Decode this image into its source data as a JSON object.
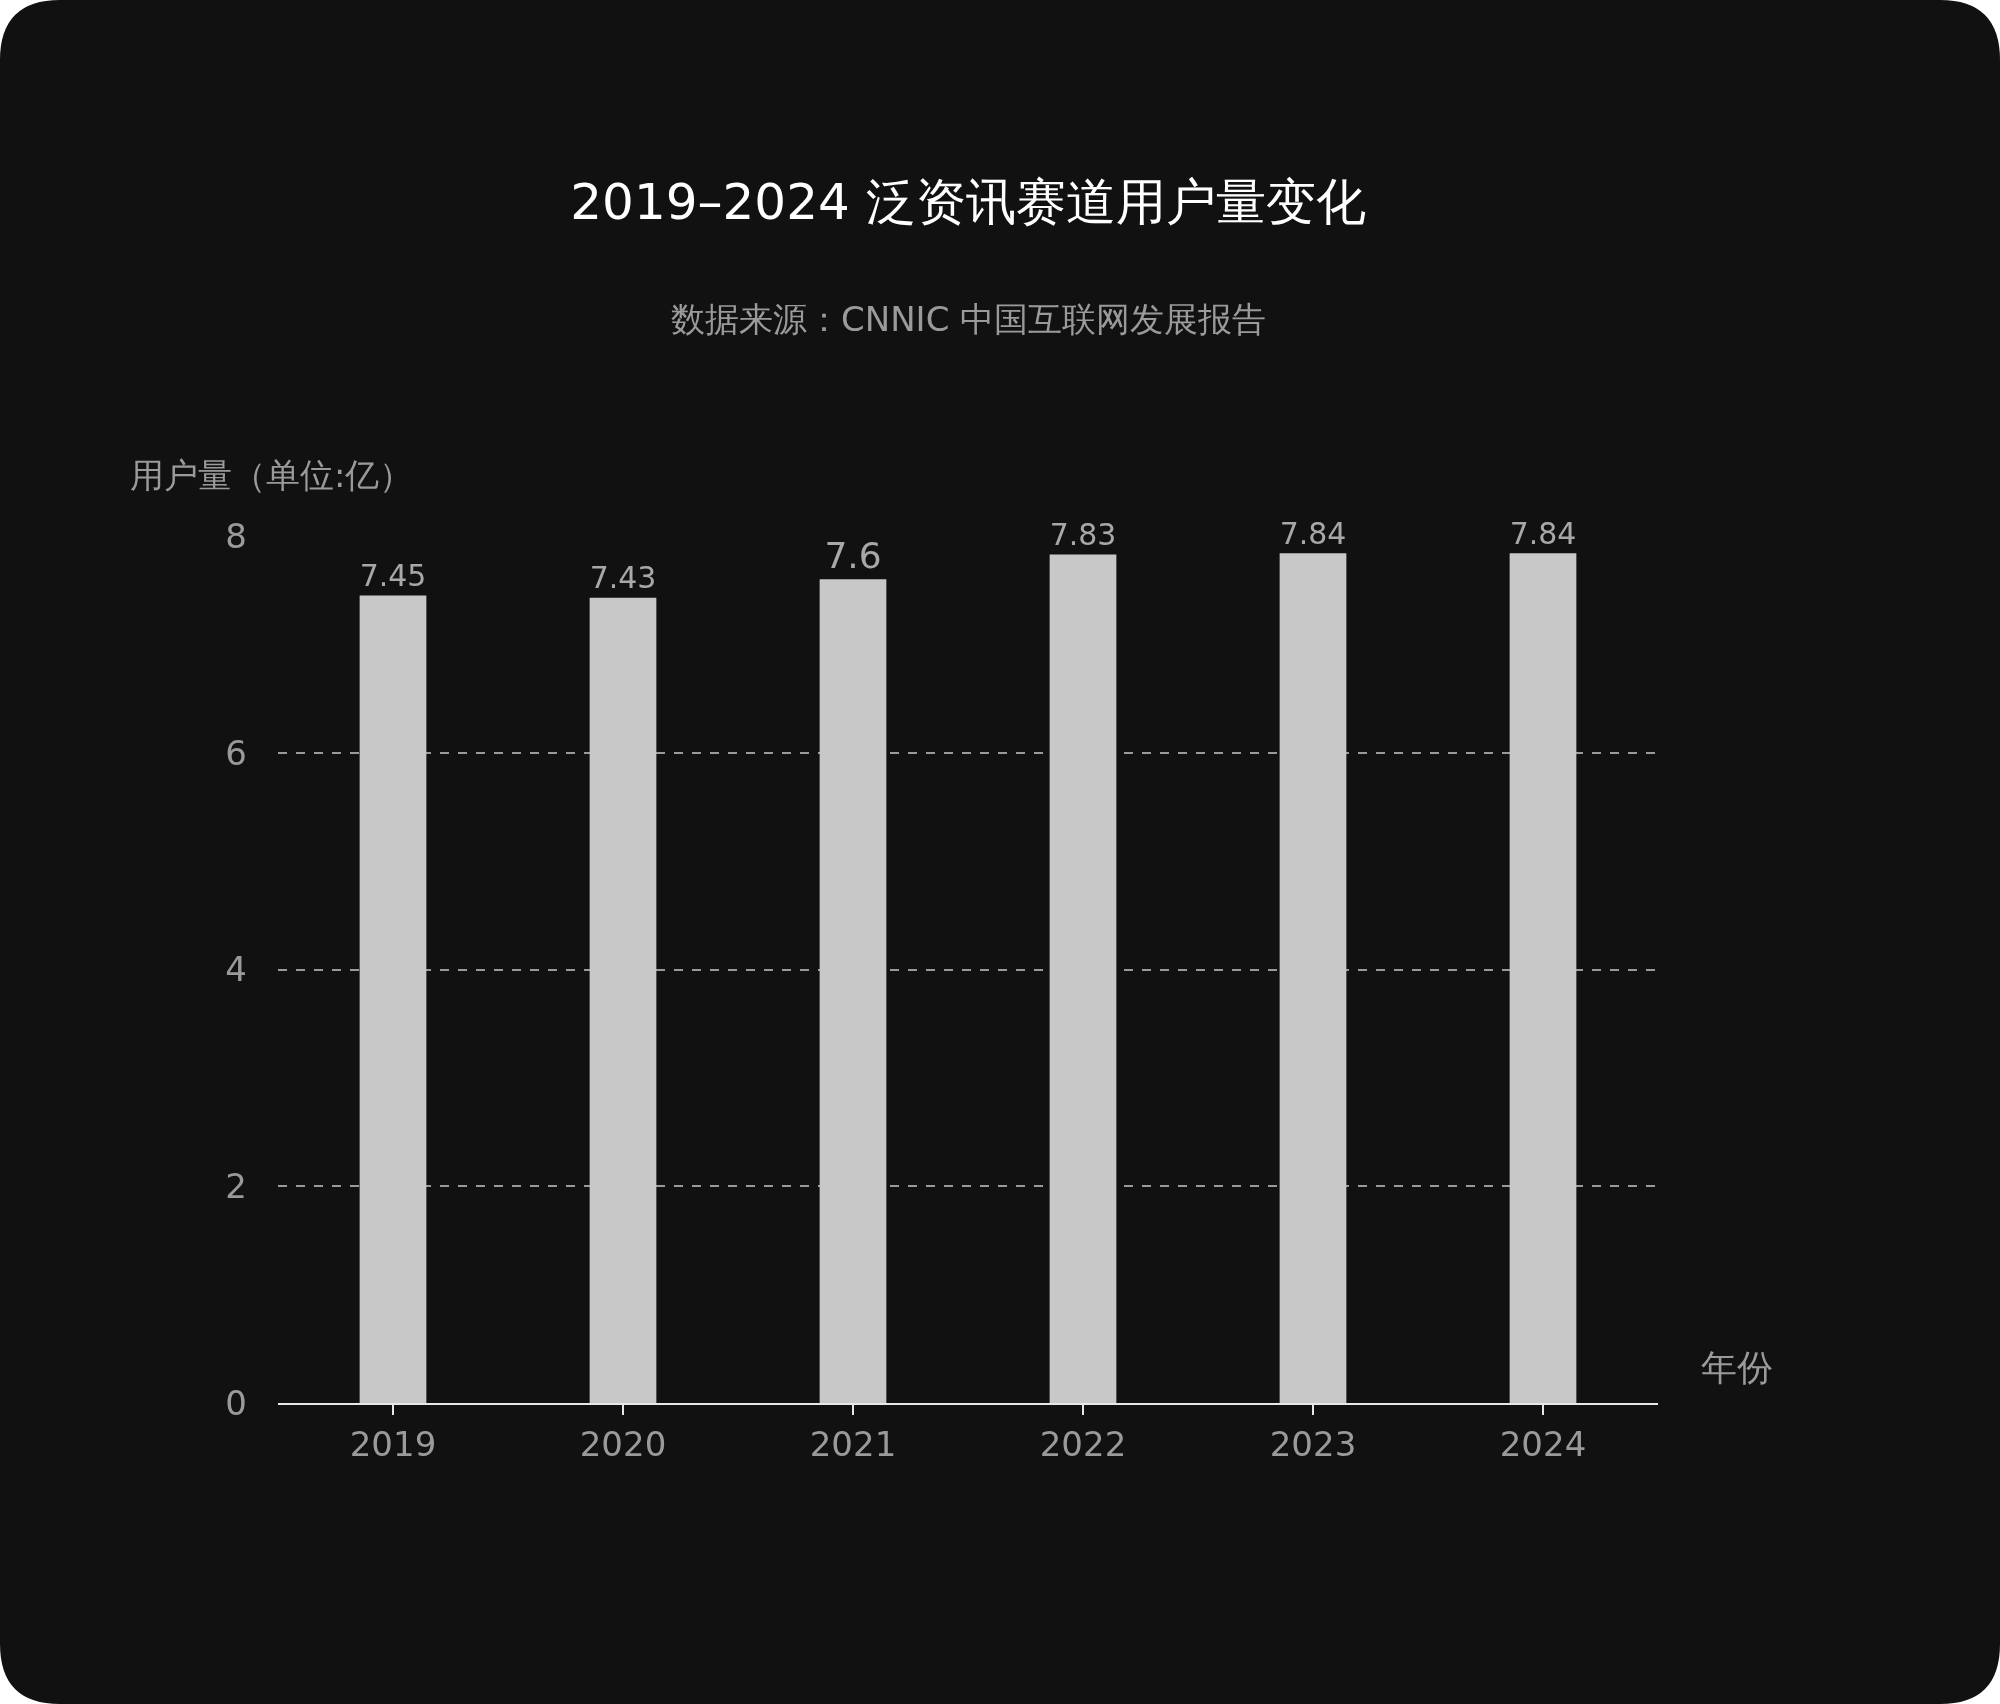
{
  "chart_data": {
    "type": "bar",
    "title": "2019–2024 泛资讯赛道用户量变化",
    "subtitle": "数据来源：CNNIC 中国互联网发展报告",
    "xlabel": "年份",
    "ylabel": "用户量（单位:亿）",
    "categories": [
      "2019",
      "2020",
      "2021",
      "2022",
      "2023",
      "2024"
    ],
    "values": [
      7.45,
      7.43,
      7.6,
      7.83,
      7.84,
      7.84
    ],
    "color": "#c8c8c8",
    "ylim": [
      0,
      8
    ],
    "yticks": [
      0,
      2,
      4,
      6,
      8
    ],
    "grid": "y",
    "data_labels": true,
    "legend": false
  }
}
